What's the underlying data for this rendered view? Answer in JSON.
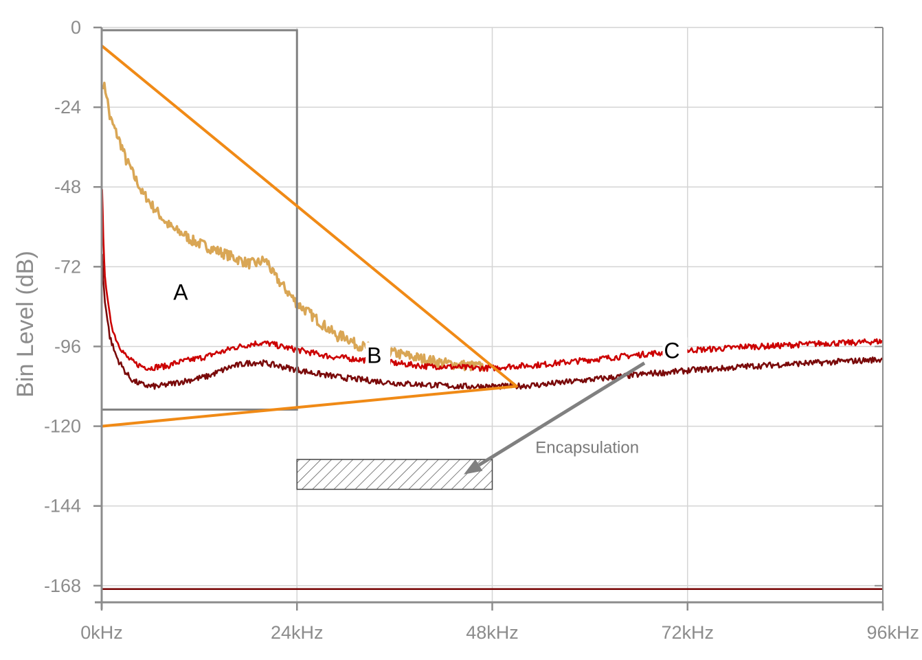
{
  "chart_data": {
    "type": "line",
    "title": "",
    "xlabel": "",
    "ylabel": "Bin Level (dB)",
    "xlim": [
      0,
      96
    ],
    "ylim": [
      -173,
      0
    ],
    "x_unit": "kHz",
    "x_ticks": [
      0,
      24,
      48,
      72,
      96
    ],
    "x_tick_labels": [
      "0kHz",
      "24kHz",
      "48kHz",
      "72kHz",
      "96kHz"
    ],
    "y_ticks": [
      0,
      -24,
      -48,
      -72,
      -96,
      -120,
      -144,
      -168
    ],
    "y_tick_labels": [
      "0",
      "-24",
      "-48",
      "-72",
      "-96",
      "-120",
      "-144",
      "-168"
    ],
    "grid": true,
    "legend": "none",
    "colors": {
      "axis": "#8c8c8c",
      "grid": "#d4d4d4",
      "gold": "#d9a655",
      "red": "#cc0000",
      "darkred": "#7a0a0a",
      "orange": "#f08a16",
      "box": "#808080",
      "arrow": "#808080"
    },
    "series": [
      {
        "color": "#d9a655",
        "points": [
          [
            0.2,
            -17
          ],
          [
            0.6,
            -20
          ],
          [
            1,
            -27
          ],
          [
            1.5,
            -30
          ],
          [
            2,
            -33
          ],
          [
            2.5,
            -36
          ],
          [
            3,
            -40
          ],
          [
            3.5,
            -42
          ],
          [
            4,
            -45
          ],
          [
            4.5,
            -47
          ],
          [
            5,
            -50
          ],
          [
            5.5,
            -51
          ],
          [
            6,
            -53
          ],
          [
            7,
            -56
          ],
          [
            8,
            -59
          ],
          [
            9,
            -61
          ],
          [
            10,
            -62
          ],
          [
            11,
            -64
          ],
          [
            12,
            -65
          ],
          [
            13,
            -66
          ],
          [
            14,
            -67
          ],
          [
            15,
            -68
          ],
          [
            16,
            -69
          ],
          [
            17,
            -70
          ],
          [
            18,
            -71
          ],
          [
            19,
            -71
          ],
          [
            20,
            -70
          ],
          [
            20.5,
            -71
          ],
          [
            21,
            -74
          ],
          [
            22,
            -77
          ],
          [
            23,
            -80
          ],
          [
            24,
            -83
          ],
          [
            25,
            -85
          ],
          [
            26,
            -87
          ],
          [
            27,
            -89
          ],
          [
            28,
            -91
          ],
          [
            29,
            -93
          ],
          [
            30,
            -93
          ],
          [
            31,
            -95
          ],
          [
            32,
            -96
          ],
          [
            34,
            -97
          ],
          [
            36,
            -98
          ],
          [
            38,
            -99
          ],
          [
            40,
            -100
          ],
          [
            42,
            -101
          ],
          [
            44,
            -101.5
          ],
          [
            46,
            -102
          ],
          [
            47,
            -102
          ]
        ]
      },
      {
        "color": "#cc0000",
        "points": [
          [
            0.05,
            -48
          ],
          [
            0.2,
            -64
          ],
          [
            0.4,
            -74
          ],
          [
            0.7,
            -82
          ],
          [
            1,
            -87
          ],
          [
            1.5,
            -92
          ],
          [
            2,
            -95
          ],
          [
            2.5,
            -97
          ],
          [
            3,
            -99
          ],
          [
            3.5,
            -100
          ],
          [
            4,
            -101
          ],
          [
            5,
            -102
          ],
          [
            6,
            -102.5
          ],
          [
            7,
            -102
          ],
          [
            8,
            -102
          ],
          [
            9,
            -101
          ],
          [
            10,
            -100.5
          ],
          [
            11,
            -100
          ],
          [
            12,
            -99.5
          ],
          [
            13,
            -99
          ],
          [
            14,
            -98
          ],
          [
            15,
            -97.5
          ],
          [
            16,
            -96.5
          ],
          [
            17,
            -96
          ],
          [
            18,
            -95.5
          ],
          [
            19,
            -95
          ],
          [
            20,
            -95
          ],
          [
            21,
            -95.3
          ],
          [
            22,
            -96
          ],
          [
            23,
            -96.5
          ],
          [
            24,
            -97
          ],
          [
            25,
            -97.5
          ],
          [
            26,
            -98
          ],
          [
            27,
            -98.5
          ],
          [
            28,
            -99
          ],
          [
            30,
            -99.5
          ],
          [
            32,
            -100
          ],
          [
            34,
            -100.5
          ],
          [
            36,
            -101
          ],
          [
            38,
            -101.5
          ],
          [
            40,
            -102
          ],
          [
            42,
            -102
          ],
          [
            44,
            -102.3
          ],
          [
            46,
            -102.5
          ],
          [
            48,
            -102.5
          ],
          [
            50,
            -102
          ],
          [
            52,
            -101.8
          ],
          [
            54,
            -101.5
          ],
          [
            56,
            -101
          ],
          [
            58,
            -100.5
          ],
          [
            60,
            -100
          ],
          [
            62,
            -99.5
          ],
          [
            64,
            -99
          ],
          [
            66,
            -98.5
          ],
          [
            68,
            -98
          ],
          [
            68.5,
            -98
          ],
          [
            71,
            -97.5
          ],
          [
            73,
            -97
          ],
          [
            75,
            -96.8
          ],
          [
            77,
            -96.5
          ],
          [
            79,
            -96
          ],
          [
            81,
            -96
          ],
          [
            83,
            -95.8
          ],
          [
            85,
            -95.5
          ],
          [
            87,
            -95.3
          ],
          [
            89,
            -95
          ],
          [
            91,
            -95
          ],
          [
            93,
            -94.8
          ],
          [
            95,
            -94.5
          ],
          [
            96,
            -94.5
          ]
        ]
      },
      {
        "color": "#7a0a0a",
        "points": [
          [
            0.05,
            -68
          ],
          [
            0.2,
            -76
          ],
          [
            0.4,
            -82
          ],
          [
            0.7,
            -88
          ],
          [
            1,
            -93
          ],
          [
            1.5,
            -97
          ],
          [
            2,
            -100
          ],
          [
            2.5,
            -102
          ],
          [
            3,
            -104
          ],
          [
            3.5,
            -105.5
          ],
          [
            4,
            -106.5
          ],
          [
            5,
            -107.5
          ],
          [
            6,
            -108
          ],
          [
            7,
            -108
          ],
          [
            8,
            -107.5
          ],
          [
            9,
            -107
          ],
          [
            10,
            -106.5
          ],
          [
            11,
            -106
          ],
          [
            12,
            -105.5
          ],
          [
            13,
            -105
          ],
          [
            14,
            -104
          ],
          [
            15,
            -103
          ],
          [
            16,
            -102
          ],
          [
            17,
            -101.5
          ],
          [
            18,
            -101
          ],
          [
            19,
            -100.8
          ],
          [
            20,
            -101
          ],
          [
            21,
            -101.5
          ],
          [
            22,
            -102
          ],
          [
            23,
            -102.5
          ],
          [
            24,
            -103
          ],
          [
            25,
            -103.5
          ],
          [
            26,
            -104
          ],
          [
            28,
            -104.8
          ],
          [
            30,
            -105.5
          ],
          [
            32,
            -106
          ],
          [
            34,
            -106.5
          ],
          [
            36,
            -107
          ],
          [
            38,
            -107.3
          ],
          [
            40,
            -107.5
          ],
          [
            42,
            -107.8
          ],
          [
            44,
            -108
          ],
          [
            46,
            -108
          ],
          [
            48,
            -108
          ],
          [
            50,
            -108
          ],
          [
            52,
            -107.8
          ],
          [
            54,
            -107.5
          ],
          [
            56,
            -107
          ],
          [
            58,
            -106.5
          ],
          [
            60,
            -106
          ],
          [
            62,
            -105.5
          ],
          [
            64,
            -105
          ],
          [
            66,
            -104.5
          ],
          [
            68,
            -104
          ],
          [
            68.5,
            -104
          ],
          [
            71,
            -103.5
          ],
          [
            73,
            -103
          ],
          [
            75,
            -102.8
          ],
          [
            77,
            -102.5
          ],
          [
            79,
            -102
          ],
          [
            81,
            -101.8
          ],
          [
            83,
            -101.5
          ],
          [
            85,
            -101.2
          ],
          [
            87,
            -101
          ],
          [
            89,
            -100.8
          ],
          [
            91,
            -100.5
          ],
          [
            93,
            -100.3
          ],
          [
            95,
            -100
          ],
          [
            96,
            -100
          ]
        ]
      },
      {
        "color": "#7a0a0a",
        "points": [
          [
            0,
            -169
          ],
          [
            96,
            -169
          ]
        ]
      }
    ],
    "annotations": {
      "labels": [
        {
          "text": "A",
          "x": 8.8,
          "y": -82
        },
        {
          "text": "B",
          "x": 32.6,
          "y": -101
        },
        {
          "text": "C",
          "x": 69.1,
          "y": -99.5
        },
        {
          "text": "Encapsulation",
          "x": 53.3,
          "y": -128
        }
      ],
      "region_box": {
        "x": [
          0,
          24
        ],
        "y": [
          -115,
          0
        ]
      },
      "hatched_box": {
        "x": [
          24,
          48
        ],
        "y": [
          -130,
          -139
        ]
      },
      "triangle": [
        [
          0,
          -5.5
        ],
        [
          51,
          -108
        ],
        [
          0,
          -120
        ]
      ],
      "arrow": {
        "from": [
          66.7,
          -101
        ],
        "to": [
          44.5,
          -134.5
        ]
      }
    }
  }
}
